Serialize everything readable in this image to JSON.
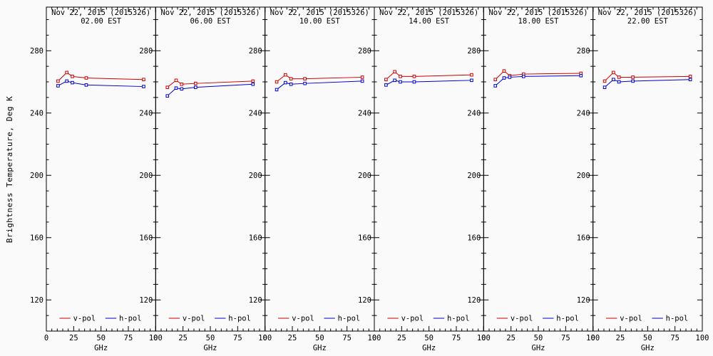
{
  "figure": {
    "ylabel": "Brightness Temperature, Deg K",
    "background": "#fafafa",
    "axis_color": "#000000",
    "text_color": "#000000",
    "v_pol_color": "#cc0000",
    "h_pol_color": "#0000cc"
  },
  "chart_data": [
    {
      "type": "line",
      "title": "Nov 22, 2015 (2015326)",
      "subtitle": "02.00 EST",
      "xlabel": "GHz",
      "x": [
        10.7,
        18.7,
        23.8,
        36.5,
        89.0
      ],
      "series": [
        {
          "name": "v-pol",
          "color": "#cc0000",
          "values": [
            260.5,
            266.0,
            263.5,
            262.5,
            261.5
          ]
        },
        {
          "name": "h-pol",
          "color": "#0000cc",
          "values": [
            257.5,
            260.5,
            259.5,
            258.0,
            257.0
          ]
        }
      ],
      "xlim": [
        0,
        100
      ],
      "ylim": [
        100,
        308
      ],
      "xticks": [
        0,
        25,
        50,
        75,
        100
      ],
      "yticks": [
        120,
        160,
        200,
        240,
        280
      ],
      "legend": [
        "v-pol",
        "h-pol"
      ],
      "legend_position": "bottom"
    },
    {
      "type": "line",
      "title": "Nov 22, 2015 (2015326)",
      "subtitle": "06.00 EST",
      "xlabel": "GHz",
      "x": [
        10.7,
        18.7,
        23.8,
        36.5,
        89.0
      ],
      "series": [
        {
          "name": "v-pol",
          "color": "#cc0000",
          "values": [
            256.5,
            261.0,
            258.5,
            259.0,
            260.5
          ]
        },
        {
          "name": "h-pol",
          "color": "#0000cc",
          "values": [
            251.0,
            256.0,
            255.5,
            256.5,
            258.5
          ]
        }
      ],
      "xlim": [
        0,
        100
      ],
      "ylim": [
        100,
        308
      ],
      "xticks": [
        0,
        25,
        50,
        75,
        100
      ],
      "yticks": [
        120,
        160,
        200,
        240,
        280
      ],
      "legend": [
        "v-pol",
        "h-pol"
      ],
      "legend_position": "bottom"
    },
    {
      "type": "line",
      "title": "Nov 22, 2015 (2015326)",
      "subtitle": "10.00 EST",
      "xlabel": "GHz",
      "x": [
        10.7,
        18.7,
        23.8,
        36.5,
        89.0
      ],
      "series": [
        {
          "name": "v-pol",
          "color": "#cc0000",
          "values": [
            260.0,
            264.5,
            262.0,
            262.0,
            263.0
          ]
        },
        {
          "name": "h-pol",
          "color": "#0000cc",
          "values": [
            255.0,
            259.5,
            258.5,
            259.0,
            260.5
          ]
        }
      ],
      "xlim": [
        0,
        100
      ],
      "ylim": [
        100,
        308
      ],
      "xticks": [
        0,
        25,
        50,
        75,
        100
      ],
      "yticks": [
        120,
        160,
        200,
        240,
        280
      ],
      "legend": [
        "v-pol",
        "h-pol"
      ],
      "legend_position": "bottom"
    },
    {
      "type": "line",
      "title": "Nov 22, 2015 (2015326)",
      "subtitle": "14.00 EST",
      "xlabel": "GHz",
      "x": [
        10.7,
        18.7,
        23.8,
        36.5,
        89.0
      ],
      "series": [
        {
          "name": "v-pol",
          "color": "#cc0000",
          "values": [
            261.5,
            266.5,
            263.5,
            263.5,
            264.5
          ]
        },
        {
          "name": "h-pol",
          "color": "#0000cc",
          "values": [
            258.0,
            261.0,
            260.0,
            260.0,
            261.0
          ]
        }
      ],
      "xlim": [
        0,
        100
      ],
      "ylim": [
        100,
        308
      ],
      "xticks": [
        0,
        25,
        50,
        75,
        100
      ],
      "yticks": [
        120,
        160,
        200,
        240,
        280
      ],
      "legend": [
        "v-pol",
        "h-pol"
      ],
      "legend_position": "bottom"
    },
    {
      "type": "line",
      "title": "Nov 22, 2015 (2015326)",
      "subtitle": "18.00 EST",
      "xlabel": "GHz",
      "x": [
        10.7,
        18.7,
        23.8,
        36.5,
        89.0
      ],
      "series": [
        {
          "name": "v-pol",
          "color": "#cc0000",
          "values": [
            261.5,
            267.0,
            264.0,
            265.0,
            265.5
          ]
        },
        {
          "name": "h-pol",
          "color": "#0000cc",
          "values": [
            257.5,
            262.5,
            263.0,
            263.5,
            264.0
          ]
        }
      ],
      "xlim": [
        0,
        100
      ],
      "ylim": [
        100,
        308
      ],
      "xticks": [
        0,
        25,
        50,
        75,
        100
      ],
      "yticks": [
        120,
        160,
        200,
        240,
        280
      ],
      "legend": [
        "v-pol",
        "h-pol"
      ],
      "legend_position": "bottom"
    },
    {
      "type": "line",
      "title": "Nov 22, 2015 (2015326)",
      "subtitle": "22.00 EST",
      "xlabel": "GHz",
      "x": [
        10.7,
        18.7,
        23.8,
        36.5,
        89.0
      ],
      "series": [
        {
          "name": "v-pol",
          "color": "#cc0000",
          "values": [
            260.5,
            266.0,
            263.0,
            263.0,
            263.5
          ]
        },
        {
          "name": "h-pol",
          "color": "#0000cc",
          "values": [
            256.5,
            261.5,
            260.0,
            260.5,
            261.5
          ]
        }
      ],
      "xlim": [
        0,
        100
      ],
      "ylim": [
        100,
        308
      ],
      "xticks": [
        0,
        25,
        50,
        75,
        100
      ],
      "yticks": [
        120,
        160,
        200,
        240,
        280
      ],
      "legend": [
        "v-pol",
        "h-pol"
      ],
      "legend_position": "bottom"
    }
  ]
}
